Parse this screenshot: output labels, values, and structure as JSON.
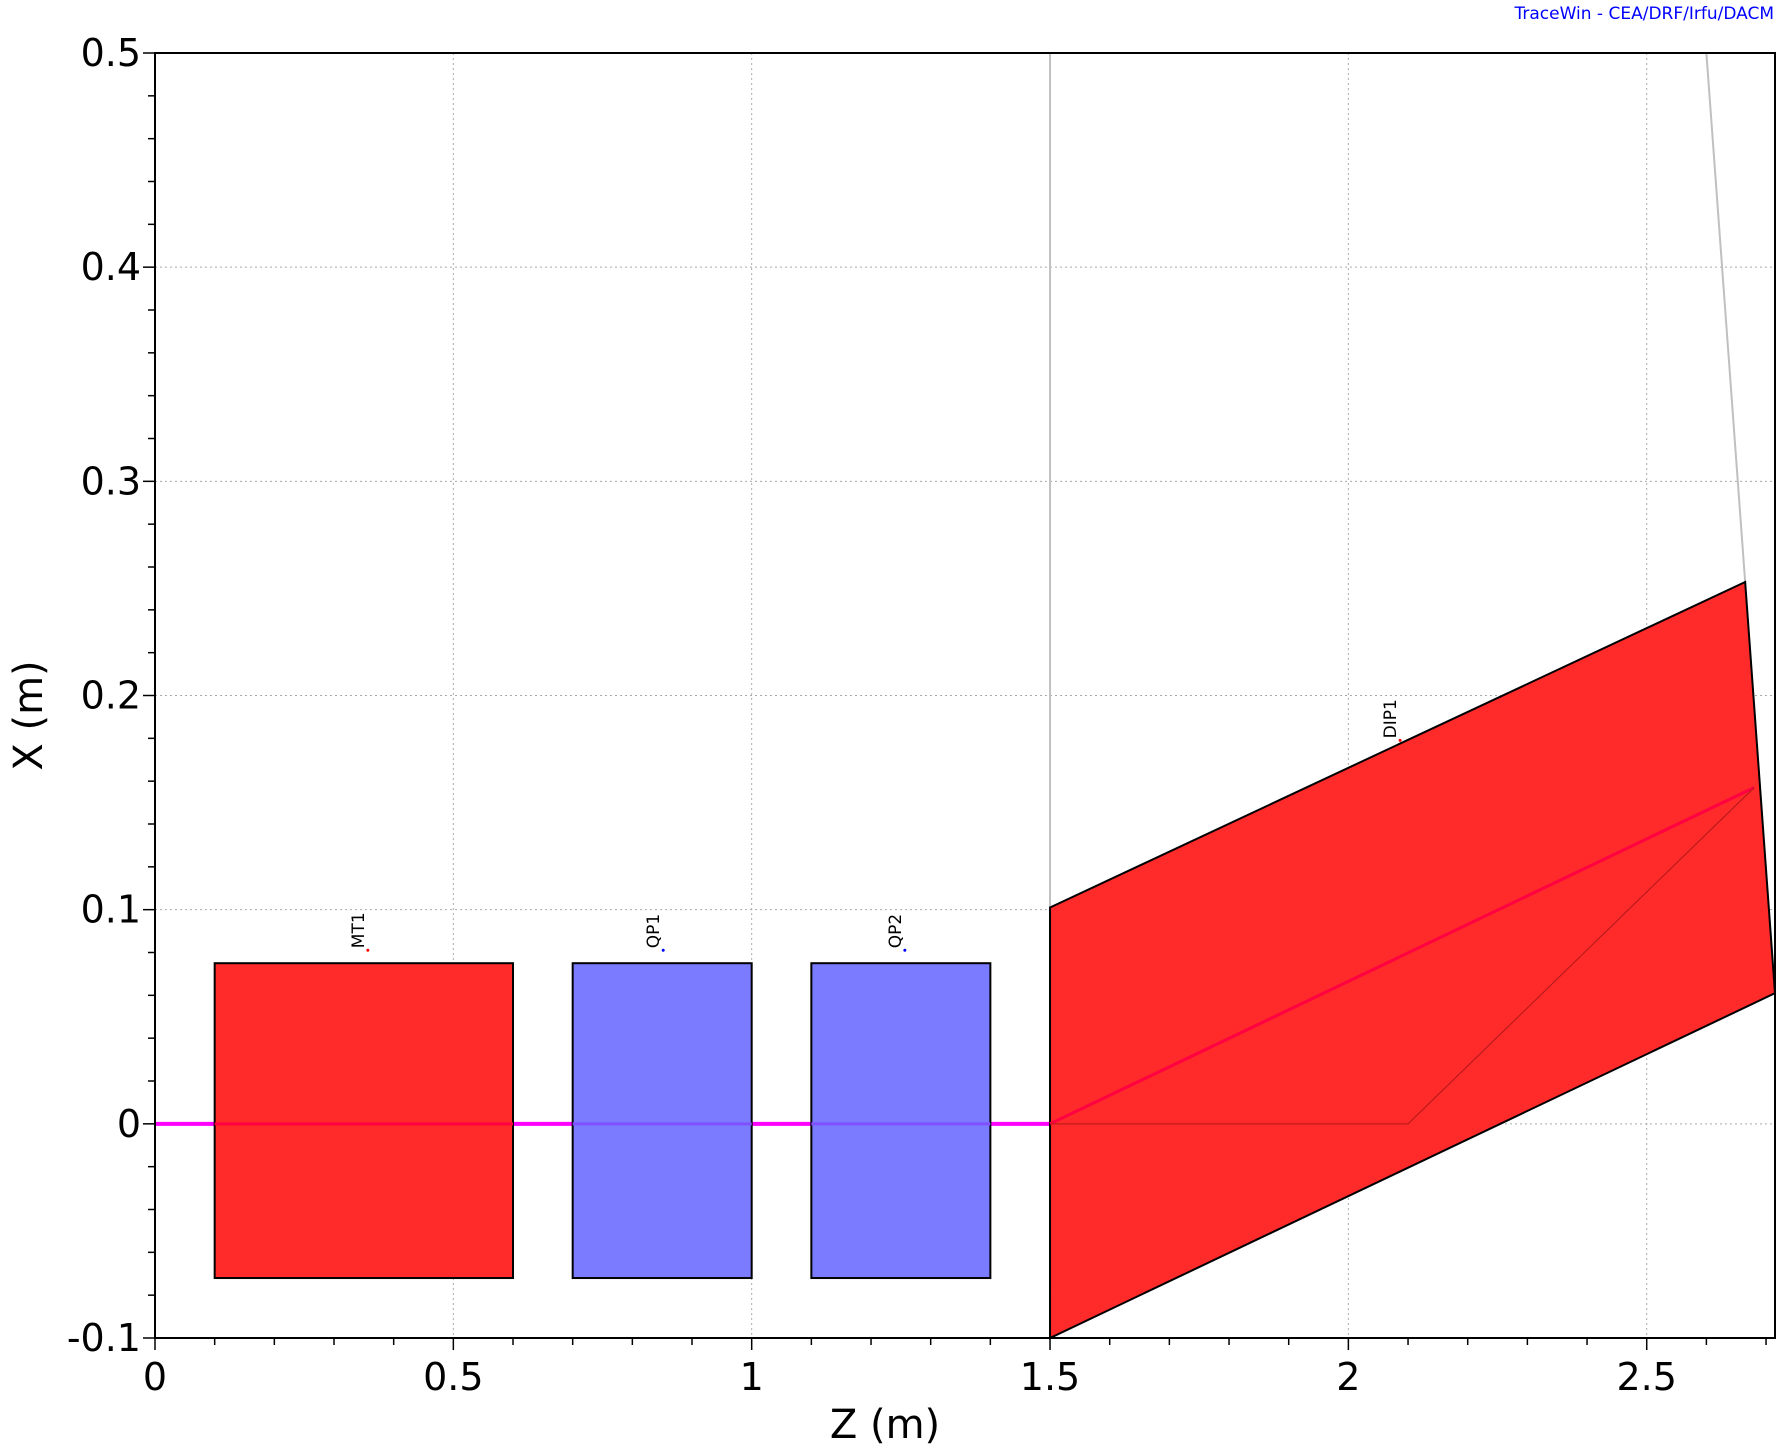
{
  "credit": "TraceWin - CEA/DRF/Irfu/DACM",
  "colors": {
    "magnet": "#ff2a2a",
    "quadrupole": "#7b7bff",
    "beamline": "#ff00ff",
    "beam_in_element": "#ff0040",
    "grid": "#aaaaaa",
    "bend_guide": "#c0c0c0"
  },
  "chart_data": {
    "type": "area",
    "title": "",
    "xlabel": "Z (m)",
    "ylabel": "X (m)",
    "xlim": [
      0,
      2.715
    ],
    "ylim": [
      -0.1,
      0.5
    ],
    "grid": true,
    "x_ticks": [
      0,
      0.5,
      1,
      1.5,
      2,
      2.5
    ],
    "x_tick_labels": [
      "0",
      "0.5",
      "1",
      "1.5",
      "2",
      "2.5"
    ],
    "y_ticks": [
      -0.1,
      0,
      0.1,
      0.2,
      0.3,
      0.4,
      0.5
    ],
    "y_tick_labels": [
      "-0.1",
      "0",
      "0.1",
      "0.2",
      "0.3",
      "0.4",
      "0.5"
    ],
    "beamline": {
      "z": [
        0,
        1.5
      ],
      "x": [
        0,
        0
      ]
    },
    "bend_axis": {
      "z": [
        1.5,
        2.68
      ],
      "x": [
        0,
        0.157
      ]
    },
    "bend_guides": [
      {
        "z": [
          1.5,
          1.5
        ],
        "x": [
          0.5,
          0.0
        ]
      },
      {
        "z": [
          2.6,
          2.665
        ],
        "x": [
          0.5,
          0.253
        ]
      }
    ],
    "elements": [
      {
        "name": "MT1",
        "kind": "magnet",
        "z": [
          0.1,
          0.6
        ],
        "x": [
          -0.072,
          0.075
        ],
        "label_z": 0.35
      },
      {
        "name": "QP1",
        "kind": "quadrupole",
        "z": [
          0.7,
          1.0
        ],
        "x": [
          -0.072,
          0.075
        ],
        "label_z": 0.845
      },
      {
        "name": "QP2",
        "kind": "quadrupole",
        "z": [
          1.1,
          1.4
        ],
        "x": [
          -0.072,
          0.075
        ],
        "label_z": 1.25
      }
    ],
    "dipole": {
      "name": "DIP1",
      "polygon_z": [
        1.5,
        2.665,
        2.715,
        1.5
      ],
      "polygon_x": [
        0.101,
        0.253,
        0.061,
        -0.1
      ],
      "label_z": 2.08,
      "label_x": 0.18
    }
  }
}
